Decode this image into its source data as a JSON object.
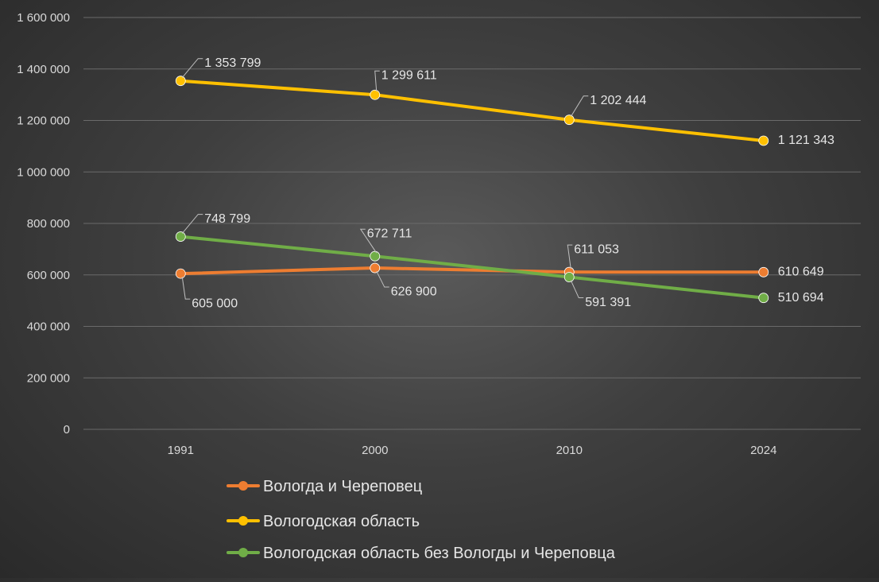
{
  "chart_data": {
    "type": "line",
    "title": "",
    "xlabel": "",
    "ylabel": "",
    "categories": [
      "1991",
      "2000",
      "2010",
      "2024"
    ],
    "ylim": [
      0,
      1600000
    ],
    "y_ticks": [
      0,
      200000,
      400000,
      600000,
      800000,
      1000000,
      1200000,
      1400000,
      1600000
    ],
    "y_tick_labels": [
      "0",
      "200 000",
      "400 000",
      "600 000",
      "800 000",
      "1 000 000",
      "1 200 000",
      "1 400 000",
      "1 600 000"
    ],
    "grid": "horizontal",
    "legend_position": "bottom",
    "series": [
      {
        "name": "Вологда и Череповец",
        "color": "#ED7D31",
        "values": [
          605000,
          626900,
          611053,
          610649
        ],
        "labels": [
          "605 000",
          "626 900",
          "611 053",
          "610 649"
        ]
      },
      {
        "name": "Вологодская область",
        "color": "#FFC000",
        "values": [
          1353799,
          1299611,
          1202444,
          1121343
        ],
        "labels": [
          "1 353 799",
          "1 299 611",
          "1 202 444",
          "1 121 343"
        ]
      },
      {
        "name": "Вологодская область без Вологды и Череповца",
        "color": "#70AD47",
        "values": [
          748799,
          672711,
          591391,
          510694
        ],
        "labels": [
          "748 799",
          "672 711",
          "591 391",
          "510 694"
        ]
      }
    ]
  }
}
